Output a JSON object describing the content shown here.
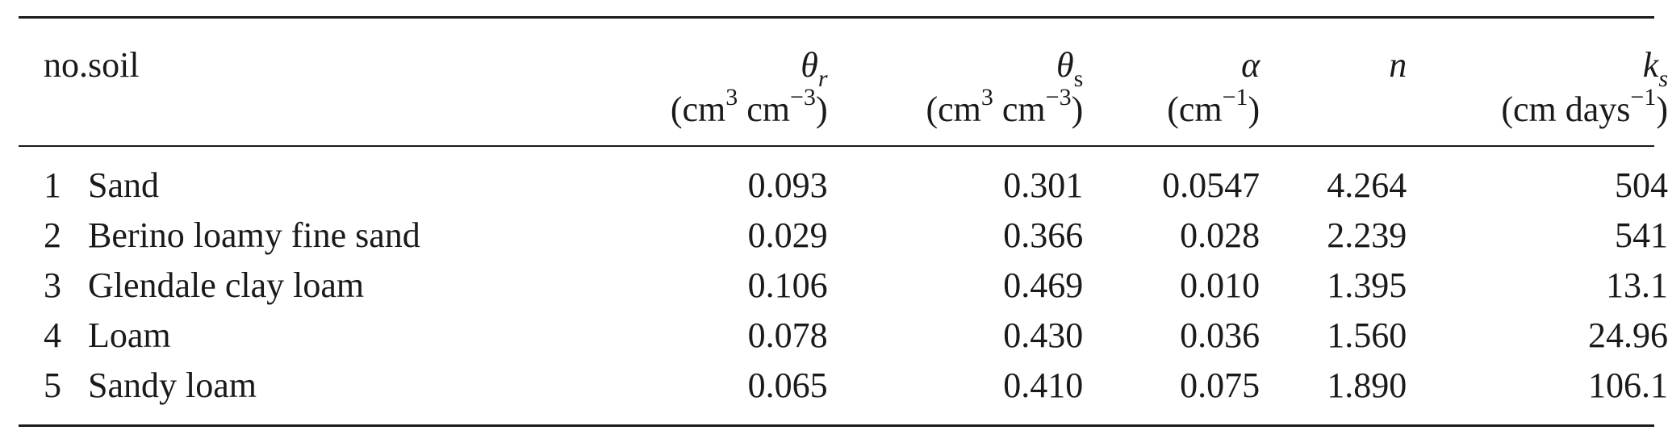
{
  "table": {
    "headers": {
      "no": "no.",
      "soil": "soil",
      "theta_r": {
        "symbol": "θ",
        "sub": "r",
        "unit_a": "(cm",
        "unit_a_sup": "3",
        "unit_b": " cm",
        "unit_b_sup": "−3",
        "unit_close": ")"
      },
      "theta_s": {
        "symbol": "θ",
        "sub": "s",
        "unit_a": "(cm",
        "unit_a_sup": "3",
        "unit_b": " cm",
        "unit_b_sup": "−3",
        "unit_close": ")"
      },
      "alpha": {
        "symbol": "α",
        "unit_a": "(cm",
        "unit_a_sup": "−1",
        "unit_close": ")"
      },
      "n": {
        "symbol": "n"
      },
      "ks": {
        "symbol": "k",
        "sub": "s",
        "unit_a": "(cm days",
        "unit_a_sup": "−1",
        "unit_close": ")"
      }
    },
    "rows": [
      {
        "no": "1",
        "soil": "Sand",
        "theta_r": "0.093",
        "theta_s": "0.301",
        "alpha": "0.0547",
        "n": "4.264",
        "ks": "504"
      },
      {
        "no": "2",
        "soil": "Berino loamy fine sand",
        "theta_r": "0.029",
        "theta_s": "0.366",
        "alpha": "0.028",
        "n": "2.239",
        "ks": "541"
      },
      {
        "no": "3",
        "soil": "Glendale clay loam",
        "theta_r": "0.106",
        "theta_s": "0.469",
        "alpha": "0.010",
        "n": "1.395",
        "ks": "13.1"
      },
      {
        "no": "4",
        "soil": "Loam",
        "theta_r": "0.078",
        "theta_s": "0.430",
        "alpha": "0.036",
        "n": "1.560",
        "ks": "24.96"
      },
      {
        "no": "5",
        "soil": "Sandy loam",
        "theta_r": "0.065",
        "theta_s": "0.410",
        "alpha": "0.075",
        "n": "1.890",
        "ks": "106.1"
      }
    ]
  }
}
